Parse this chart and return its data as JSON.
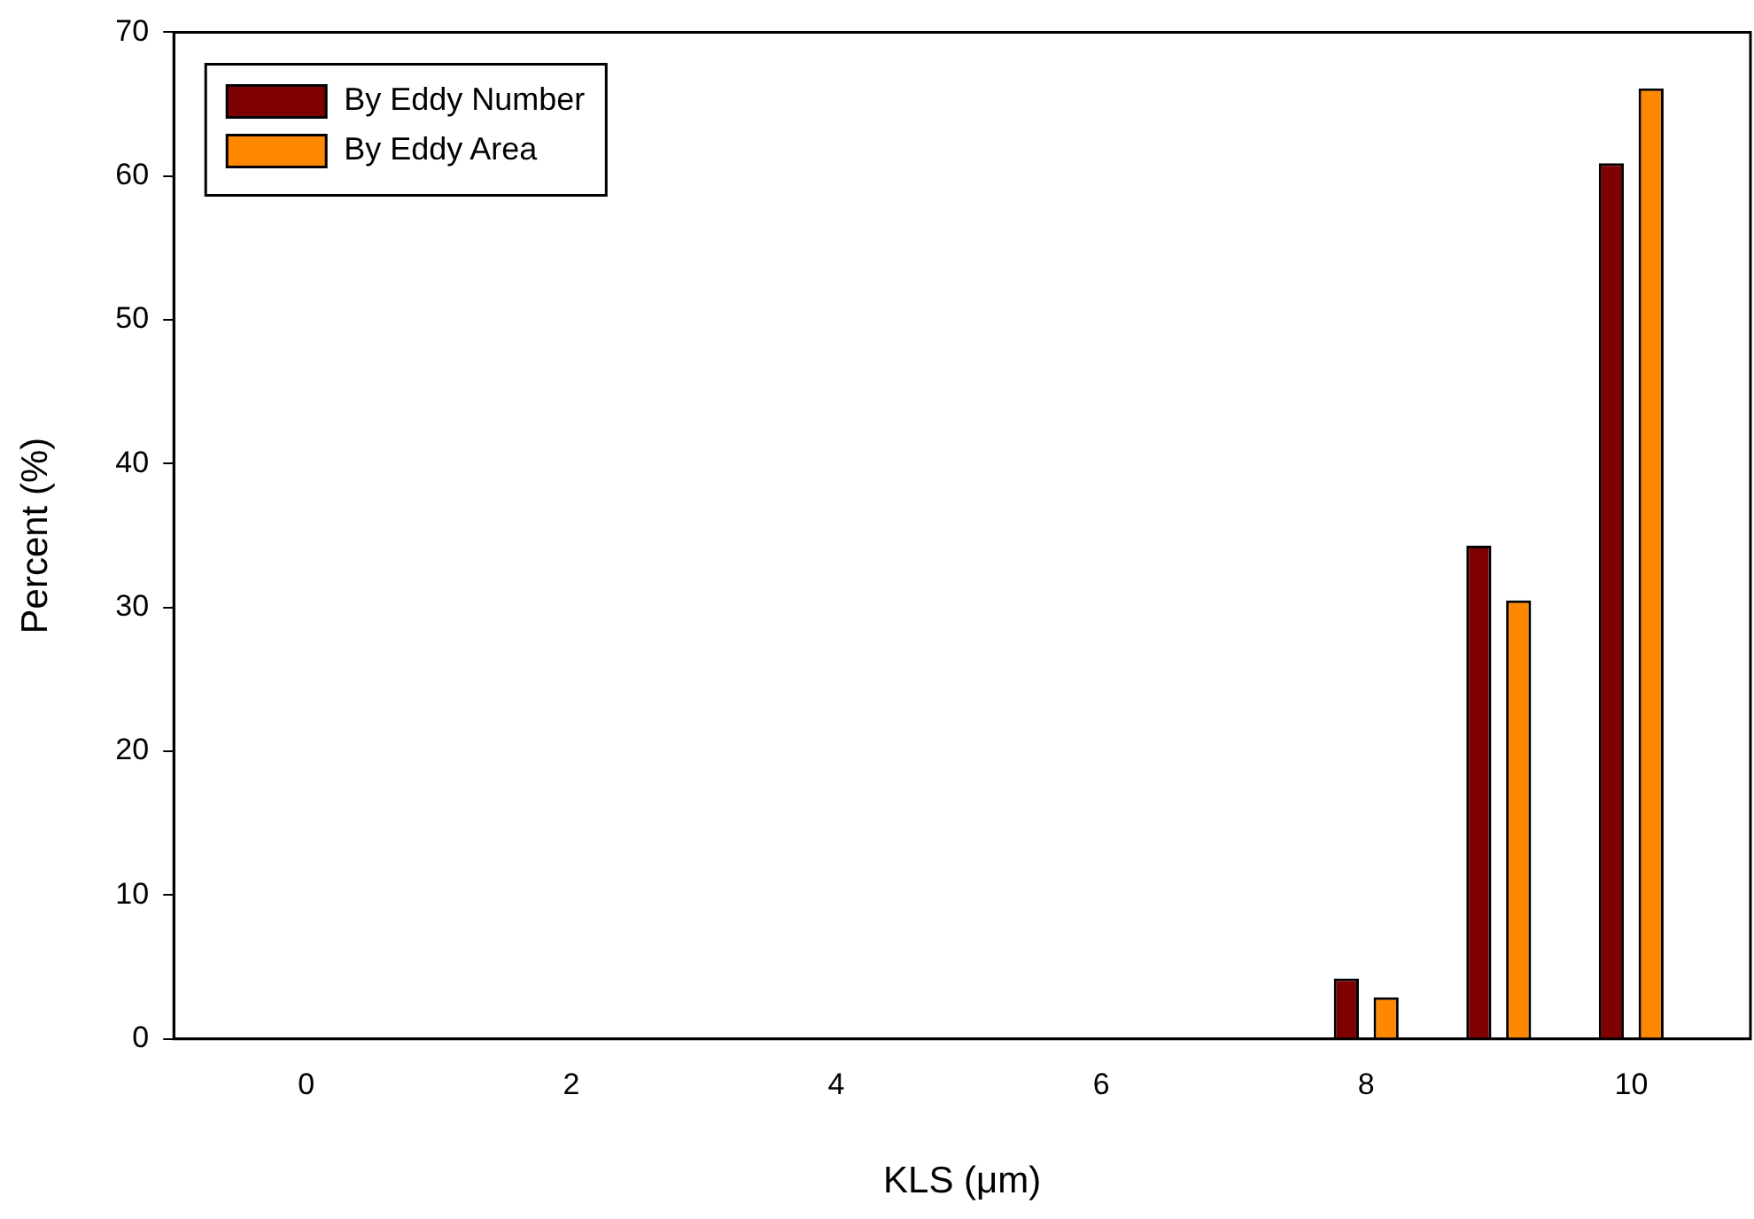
{
  "chart_data": {
    "type": "bar",
    "xlabel": "KLS (μm)",
    "ylabel": "Percent (%)",
    "x": [
      8,
      9,
      10
    ],
    "series": [
      {
        "name": "By Eddy Number",
        "color": "#7f0000",
        "values": [
          4.2,
          34.3,
          60.9
        ]
      },
      {
        "name": "By Eddy Area",
        "color": "#ff8800",
        "values": [
          2.9,
          30.5,
          66.1
        ]
      }
    ],
    "xlim": [
      -1,
      10.9
    ],
    "xticks": [
      0,
      2,
      4,
      6,
      8,
      10
    ],
    "ylim": [
      0,
      70
    ],
    "yticks": [
      0,
      10,
      20,
      30,
      40,
      50,
      60,
      70
    ],
    "grid": false,
    "legend": "top left"
  }
}
